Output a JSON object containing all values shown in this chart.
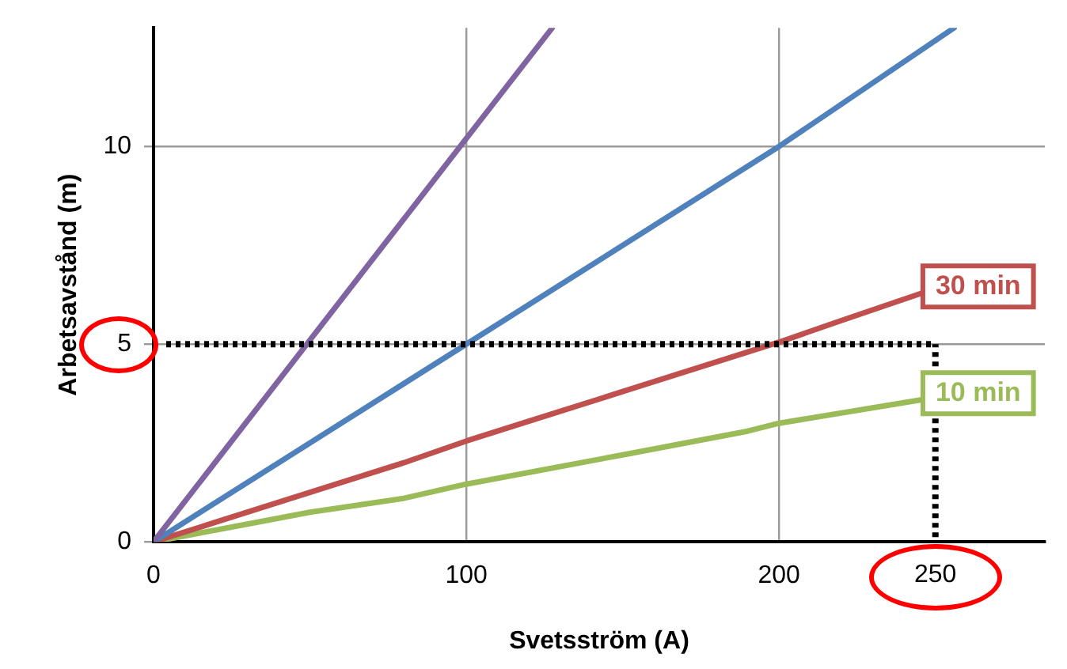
{
  "chart_data": {
    "type": "line",
    "xlabel": "Svetsström (A)",
    "ylabel": "Arbetsavstånd (m)",
    "xlim": [
      0,
      285
    ],
    "ylim": [
      0,
      13
    ],
    "xticks": [
      0,
      100,
      200
    ],
    "yticks": [
      0,
      5,
      10
    ],
    "grid": true,
    "legend": false,
    "marker": "none",
    "line_style": "solid",
    "series": [
      {
        "color": "#8064a2",
        "x": [
          0,
          50,
          100,
          127.5
        ],
        "values": [
          0,
          5.1,
          10.2,
          13
        ]
      },
      {
        "color": "#4f81bd",
        "x": [
          0,
          100,
          200,
          256
        ],
        "values": [
          0,
          5,
          10,
          13
        ]
      },
      {
        "name": "30 min",
        "color": "#c0504d",
        "x": [
          0,
          20,
          40,
          60,
          80,
          100,
          120,
          150,
          180,
          200,
          220,
          246
        ],
        "values": [
          0,
          0.5,
          1.0,
          1.5,
          2.0,
          2.55,
          3.05,
          3.8,
          4.55,
          5.05,
          5.6,
          6.3
        ]
      },
      {
        "name": "10 min",
        "color": "#9bbb59",
        "x": [
          0,
          30,
          50,
          80,
          100,
          150,
          190,
          200,
          246
        ],
        "values": [
          0,
          0.45,
          0.75,
          1.1,
          1.46,
          2.2,
          2.8,
          3.0,
          3.6
        ]
      }
    ],
    "ref_lines": [
      {
        "axis": "y",
        "value": 5,
        "color": "#000000",
        "line_style": "dotted"
      },
      {
        "axis": "x",
        "value": 250,
        "label": "250",
        "color": "#000000",
        "line_style": "dotted"
      }
    ]
  }
}
